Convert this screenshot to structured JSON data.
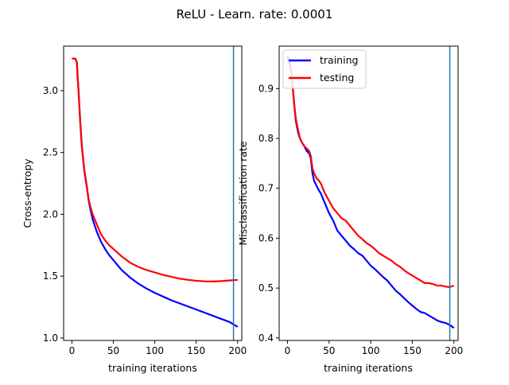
{
  "title": "ReLU - Learn. rate: 0.0001",
  "colors": {
    "training": "#0000ff",
    "testing": "#ff0000",
    "vline": "#1f77b4"
  },
  "chart_data": [
    {
      "type": "line",
      "xlabel": "training iterations",
      "ylabel": "Cross-entropy",
      "xlim": [
        -10,
        205
      ],
      "ylim": [
        0.98,
        3.36
      ],
      "xticks": [
        0,
        50,
        100,
        150,
        200
      ],
      "yticks": [
        1.0,
        1.5,
        2.0,
        2.5,
        3.0
      ],
      "xtick_labels": [
        "0",
        "50",
        "100",
        "150",
        "200"
      ],
      "ytick_labels": [
        "1.0",
        "1.5",
        "2.0",
        "2.5",
        "3.0"
      ],
      "vline_x": 195,
      "legend": null,
      "series": [
        {
          "key": "training",
          "x": [
            0,
            4,
            6,
            7,
            8,
            10,
            12,
            15,
            18,
            20,
            22,
            25,
            30,
            35,
            40,
            45,
            50,
            60,
            70,
            80,
            90,
            100,
            110,
            120,
            130,
            140,
            150,
            160,
            170,
            180,
            190,
            200
          ],
          "values": [
            3.26,
            3.26,
            3.23,
            3.1,
            3.0,
            2.75,
            2.55,
            2.35,
            2.22,
            2.12,
            2.05,
            1.96,
            1.86,
            1.78,
            1.72,
            1.67,
            1.63,
            1.55,
            1.49,
            1.44,
            1.4,
            1.365,
            1.335,
            1.305,
            1.28,
            1.255,
            1.23,
            1.205,
            1.18,
            1.155,
            1.13,
            1.09
          ]
        },
        {
          "key": "testing",
          "x": [
            0,
            4,
            6,
            7,
            8,
            10,
            12,
            15,
            18,
            20,
            22,
            25,
            30,
            35,
            40,
            45,
            50,
            60,
            70,
            80,
            90,
            100,
            110,
            120,
            130,
            140,
            150,
            160,
            170,
            180,
            190,
            200
          ],
          "values": [
            3.26,
            3.26,
            3.23,
            3.1,
            3.0,
            2.75,
            2.55,
            2.36,
            2.23,
            2.13,
            2.07,
            2.0,
            1.92,
            1.84,
            1.79,
            1.75,
            1.72,
            1.66,
            1.61,
            1.575,
            1.55,
            1.53,
            1.51,
            1.495,
            1.48,
            1.47,
            1.463,
            1.458,
            1.457,
            1.46,
            1.465,
            1.47
          ]
        }
      ]
    },
    {
      "type": "line",
      "xlabel": "training iterations",
      "ylabel": "Misclassification rate",
      "xlim": [
        -10,
        205
      ],
      "ylim": [
        0.395,
        0.985
      ],
      "xticks": [
        0,
        50,
        100,
        150,
        200
      ],
      "yticks": [
        0.4,
        0.5,
        0.6,
        0.7,
        0.8,
        0.9
      ],
      "xtick_labels": [
        "0",
        "50",
        "100",
        "150",
        "200"
      ],
      "ytick_labels": [
        "0.4",
        "0.5",
        "0.6",
        "0.7",
        "0.8",
        "0.9"
      ],
      "vline_x": 195,
      "legend": {
        "position": "upper-left",
        "entries": [
          "training",
          "testing"
        ]
      },
      "series": [
        {
          "key": "training",
          "name": "training",
          "x": [
            0,
            3,
            5,
            8,
            10,
            13,
            15,
            18,
            20,
            23,
            26,
            28,
            30,
            32,
            35,
            38,
            40,
            45,
            50,
            55,
            60,
            65,
            70,
            75,
            80,
            85,
            90,
            95,
            100,
            105,
            110,
            115,
            120,
            125,
            130,
            135,
            140,
            145,
            150,
            155,
            160,
            165,
            170,
            175,
            180,
            185,
            190,
            195,
            200
          ],
          "values": [
            0.965,
            0.95,
            0.93,
            0.87,
            0.835,
            0.81,
            0.8,
            0.79,
            0.785,
            0.775,
            0.77,
            0.76,
            0.73,
            0.715,
            0.705,
            0.695,
            0.69,
            0.67,
            0.65,
            0.635,
            0.615,
            0.605,
            0.595,
            0.585,
            0.578,
            0.57,
            0.565,
            0.555,
            0.545,
            0.538,
            0.53,
            0.522,
            0.515,
            0.505,
            0.495,
            0.488,
            0.48,
            0.472,
            0.465,
            0.458,
            0.452,
            0.45,
            0.445,
            0.44,
            0.435,
            0.432,
            0.43,
            0.426,
            0.42
          ]
        },
        {
          "key": "testing",
          "name": "testing",
          "x": [
            0,
            3,
            5,
            8,
            10,
            13,
            15,
            18,
            20,
            23,
            26,
            28,
            30,
            32,
            35,
            38,
            40,
            45,
            50,
            55,
            60,
            65,
            70,
            75,
            80,
            85,
            90,
            95,
            100,
            105,
            110,
            115,
            120,
            125,
            130,
            135,
            140,
            145,
            150,
            155,
            160,
            165,
            170,
            175,
            180,
            185,
            190,
            195,
            200
          ],
          "values": [
            0.96,
            0.945,
            0.93,
            0.87,
            0.84,
            0.815,
            0.8,
            0.79,
            0.785,
            0.78,
            0.775,
            0.765,
            0.74,
            0.73,
            0.72,
            0.715,
            0.71,
            0.69,
            0.675,
            0.66,
            0.65,
            0.64,
            0.635,
            0.625,
            0.615,
            0.605,
            0.598,
            0.59,
            0.585,
            0.578,
            0.57,
            0.565,
            0.56,
            0.555,
            0.548,
            0.543,
            0.536,
            0.53,
            0.525,
            0.52,
            0.515,
            0.51,
            0.51,
            0.508,
            0.505,
            0.505,
            0.503,
            0.502,
            0.505
          ]
        }
      ]
    }
  ]
}
